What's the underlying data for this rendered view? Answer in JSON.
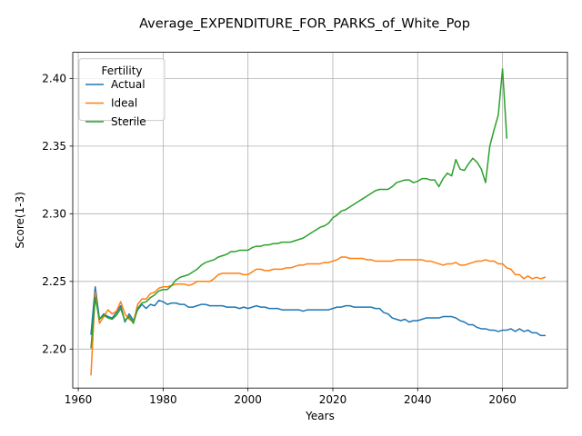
{
  "chart_data": {
    "type": "line",
    "title": "Average_EXPENDITURE_FOR_PARKS_of_White_Pop",
    "xlabel": "Years",
    "ylabel": "Score(1-3)",
    "xlim": [
      1958.7,
      2075.3
    ],
    "ylim": [
      2.1712,
      2.4193
    ],
    "xticks": [
      1960,
      1980,
      2000,
      2020,
      2040,
      2060
    ],
    "yticks": [
      2.2,
      2.25,
      2.3,
      2.35,
      2.4
    ],
    "ytick_labels": [
      "2.20",
      "2.25",
      "2.30",
      "2.35",
      "2.40"
    ],
    "grid": true,
    "legend": {
      "title": "Fertility",
      "placement": "top-left"
    },
    "series": [
      {
        "name": "Actual",
        "color": "#1f77b4",
        "x": [
          1963,
          1964,
          1965,
          1966,
          1967,
          1968,
          1969,
          1970,
          1971,
          1972,
          1973,
          1974,
          1975,
          1976,
          1977,
          1978,
          1979,
          1980,
          1981,
          1982,
          1983,
          1984,
          1985,
          1986,
          1987,
          1988,
          1989,
          1990,
          1991,
          1992,
          1993,
          1994,
          1995,
          1996,
          1997,
          1998,
          1999,
          2000,
          2001,
          2002,
          2003,
          2004,
          2005,
          2006,
          2007,
          2008,
          2009,
          2010,
          2011,
          2012,
          2013,
          2014,
          2015,
          2016,
          2017,
          2018,
          2019,
          2020,
          2021,
          2022,
          2023,
          2024,
          2025,
          2026,
          2027,
          2028,
          2029,
          2030,
          2031,
          2032,
          2033,
          2034,
          2035,
          2036,
          2037,
          2038,
          2039,
          2040,
          2041,
          2042,
          2043,
          2044,
          2045,
          2046,
          2047,
          2048,
          2049,
          2050,
          2051,
          2052,
          2053,
          2054,
          2055,
          2056,
          2057,
          2058,
          2059,
          2060,
          2061,
          2062,
          2063,
          2064,
          2065,
          2066,
          2067,
          2068,
          2069,
          2070
        ],
        "values": [
          2.211,
          2.246,
          2.222,
          2.226,
          2.224,
          2.223,
          2.227,
          2.232,
          2.22,
          2.226,
          2.221,
          2.229,
          2.233,
          2.23,
          2.233,
          2.232,
          2.236,
          2.235,
          2.233,
          2.234,
          2.234,
          2.233,
          2.233,
          2.231,
          2.231,
          2.232,
          2.233,
          2.233,
          2.232,
          2.232,
          2.232,
          2.232,
          2.231,
          2.231,
          2.231,
          2.23,
          2.231,
          2.23,
          2.231,
          2.232,
          2.231,
          2.231,
          2.23,
          2.23,
          2.23,
          2.229,
          2.229,
          2.229,
          2.229,
          2.229,
          2.228,
          2.229,
          2.229,
          2.229,
          2.229,
          2.229,
          2.229,
          2.23,
          2.231,
          2.231,
          2.232,
          2.232,
          2.231,
          2.231,
          2.231,
          2.231,
          2.231,
          2.23,
          2.23,
          2.227,
          2.226,
          2.223,
          2.222,
          2.221,
          2.222,
          2.22,
          2.221,
          2.221,
          2.222,
          2.223,
          2.223,
          2.223,
          2.223,
          2.224,
          2.224,
          2.224,
          2.223,
          2.221,
          2.22,
          2.218,
          2.218,
          2.216,
          2.215,
          2.215,
          2.214,
          2.214,
          2.213,
          2.214,
          2.214,
          2.215,
          2.213,
          2.215,
          2.213,
          2.214,
          2.212,
          2.212,
          2.21,
          2.21
        ]
      },
      {
        "name": "Ideal",
        "color": "#ff7f0e",
        "x": [
          1963,
          1964,
          1965,
          1966,
          1967,
          1968,
          1969,
          1970,
          1971,
          1972,
          1973,
          1974,
          1975,
          1976,
          1977,
          1978,
          1979,
          1980,
          1981,
          1982,
          1983,
          1984,
          1985,
          1986,
          1987,
          1988,
          1989,
          1990,
          1991,
          1992,
          1993,
          1994,
          1995,
          1996,
          1997,
          1998,
          1999,
          2000,
          2001,
          2002,
          2003,
          2004,
          2005,
          2006,
          2007,
          2008,
          2009,
          2010,
          2011,
          2012,
          2013,
          2014,
          2015,
          2016,
          2017,
          2018,
          2019,
          2020,
          2021,
          2022,
          2023,
          2024,
          2025,
          2026,
          2027,
          2028,
          2029,
          2030,
          2031,
          2032,
          2033,
          2034,
          2035,
          2036,
          2037,
          2038,
          2039,
          2040,
          2041,
          2042,
          2043,
          2044,
          2045,
          2046,
          2047,
          2048,
          2049,
          2050,
          2051,
          2052,
          2053,
          2054,
          2055,
          2056,
          2057,
          2058,
          2059,
          2060,
          2061,
          2062,
          2063,
          2064,
          2065,
          2066,
          2067,
          2068,
          2069,
          2070
        ],
        "values": [
          2.181,
          2.242,
          2.219,
          2.224,
          2.229,
          2.226,
          2.228,
          2.235,
          2.226,
          2.222,
          2.22,
          2.233,
          2.237,
          2.237,
          2.241,
          2.242,
          2.245,
          2.246,
          2.246,
          2.247,
          2.248,
          2.248,
          2.248,
          2.247,
          2.248,
          2.25,
          2.25,
          2.25,
          2.25,
          2.252,
          2.255,
          2.256,
          2.256,
          2.256,
          2.256,
          2.256,
          2.255,
          2.255,
          2.257,
          2.259,
          2.259,
          2.258,
          2.258,
          2.259,
          2.259,
          2.259,
          2.26,
          2.26,
          2.261,
          2.262,
          2.262,
          2.263,
          2.263,
          2.263,
          2.263,
          2.264,
          2.264,
          2.265,
          2.266,
          2.268,
          2.268,
          2.267,
          2.267,
          2.267,
          2.267,
          2.266,
          2.266,
          2.265,
          2.265,
          2.265,
          2.265,
          2.265,
          2.266,
          2.266,
          2.266,
          2.266,
          2.266,
          2.266,
          2.266,
          2.265,
          2.265,
          2.264,
          2.263,
          2.262,
          2.263,
          2.263,
          2.264,
          2.262,
          2.262,
          2.263,
          2.264,
          2.265,
          2.265,
          2.266,
          2.265,
          2.265,
          2.263,
          2.263,
          2.26,
          2.259,
          2.255,
          2.255,
          2.252,
          2.254,
          2.252,
          2.253,
          2.252,
          2.253
        ]
      },
      {
        "name": "Sterile",
        "color": "#2ca02c",
        "x": [
          1963,
          1964,
          1965,
          1966,
          1967,
          1968,
          1969,
          1970,
          1971,
          1972,
          1973,
          1974,
          1975,
          1976,
          1977,
          1978,
          1979,
          1980,
          1981,
          1982,
          1983,
          1984,
          1985,
          1986,
          1987,
          1988,
          1989,
          1990,
          1991,
          1992,
          1993,
          1994,
          1995,
          1996,
          1997,
          1998,
          1999,
          2000,
          2001,
          2002,
          2003,
          2004,
          2005,
          2006,
          2007,
          2008,
          2009,
          2010,
          2011,
          2012,
          2013,
          2014,
          2015,
          2016,
          2017,
          2018,
          2019,
          2020,
          2021,
          2022,
          2023,
          2024,
          2025,
          2026,
          2027,
          2028,
          2029,
          2030,
          2031,
          2032,
          2033,
          2034,
          2035,
          2036,
          2037,
          2038,
          2039,
          2040,
          2041,
          2042,
          2043,
          2044,
          2045,
          2046,
          2047,
          2048,
          2049,
          2050,
          2051,
          2052,
          2053,
          2054,
          2055,
          2056,
          2057,
          2058,
          2059,
          2060,
          2061
        ],
        "values": [
          2.201,
          2.238,
          2.222,
          2.225,
          2.223,
          2.222,
          2.225,
          2.23,
          2.221,
          2.224,
          2.219,
          2.23,
          2.234,
          2.235,
          2.238,
          2.24,
          2.243,
          2.244,
          2.244,
          2.247,
          2.251,
          2.253,
          2.254,
          2.255,
          2.257,
          2.259,
          2.262,
          2.264,
          2.265,
          2.266,
          2.268,
          2.269,
          2.27,
          2.272,
          2.272,
          2.273,
          2.273,
          2.273,
          2.275,
          2.276,
          2.276,
          2.277,
          2.277,
          2.278,
          2.278,
          2.279,
          2.279,
          2.279,
          2.28,
          2.281,
          2.282,
          2.284,
          2.286,
          2.288,
          2.29,
          2.291,
          2.293,
          2.297,
          2.299,
          2.302,
          2.303,
          2.305,
          2.307,
          2.309,
          2.311,
          2.313,
          2.315,
          2.317,
          2.318,
          2.318,
          2.318,
          2.32,
          2.323,
          2.324,
          2.325,
          2.325,
          2.323,
          2.324,
          2.326,
          2.326,
          2.325,
          2.325,
          2.32,
          2.326,
          2.33,
          2.328,
          2.34,
          2.333,
          2.332,
          2.337,
          2.341,
          2.338,
          2.333,
          2.323,
          2.35,
          2.362,
          2.373,
          2.407,
          2.356
        ]
      }
    ]
  }
}
